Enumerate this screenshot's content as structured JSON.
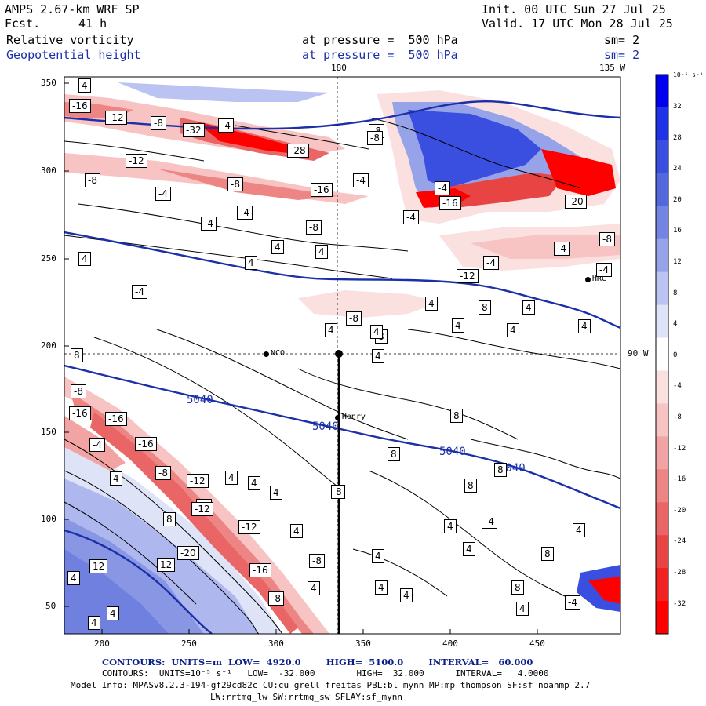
{
  "header": {
    "model": "AMPS 2.67-km WRF SP",
    "fcst_label": "Fcst.",
    "fcst_value": "41 h",
    "init": "Init. 00 UTC Sun 27 Jul 25",
    "valid": "Valid. 17 UTC Mon 28 Jul 25",
    "field1": "Relative vorticity",
    "field1_level": "at pressure =  500 hPa",
    "field1_sm": "sm= 2",
    "field2": "Geopotential height",
    "field2_level": "at pressure =  500 hPa",
    "field2_sm": "sm= 2"
  },
  "map": {
    "top_labels": {
      "lon180": "180",
      "lon135w": "135 W"
    },
    "side_label": "90 W",
    "y_ticks": [
      "350",
      "300",
      "250",
      "200",
      "150",
      "100",
      "50"
    ],
    "x_ticks": [
      "200",
      "250",
      "300",
      "350",
      "400",
      "450"
    ],
    "stations": [
      {
        "name": "NCO",
        "x": 291,
        "y": 195
      },
      {
        "name": "Henry",
        "x": 332,
        "y": 158
      },
      {
        "name": "HRC",
        "x": 476,
        "y": 238
      }
    ],
    "height_contour_labels": [
      "5040",
      "5040",
      "5040",
      "5040"
    ],
    "vorticity_labels": [
      "-16",
      "-12",
      "-8",
      "-4",
      "-12",
      "-8",
      "-4",
      "-4",
      "-8",
      "-4",
      "-8",
      "-16",
      "-8",
      "-4",
      "-28",
      "-32",
      "-8",
      "-4",
      "-16",
      "-4",
      "-20",
      "4",
      "4",
      "4",
      "4",
      "8",
      "4",
      "8",
      "-4",
      "-8",
      "-12",
      "-4",
      "-8",
      "4",
      "8",
      "4",
      "4",
      "4",
      "-4",
      "4",
      "4",
      "-4",
      "4",
      "8",
      "8",
      "8",
      "8",
      "4",
      "4",
      "4",
      "4",
      "-8",
      "-16",
      "-16",
      "-16",
      "-8",
      "-12",
      "-4",
      "-4",
      "-12",
      "-16",
      "-8",
      "-20",
      "-8",
      "-12",
      "4",
      "4",
      "8",
      "8",
      "12",
      "12",
      "4",
      "4",
      "4",
      "4",
      "4",
      "4",
      "4",
      "-4",
      "4",
      "4",
      "8",
      "8",
      "4",
      "4",
      "-4",
      "4"
    ]
  },
  "colorbar": {
    "unit": "10⁻⁵ s⁻¹",
    "labels": [
      "32",
      "28",
      "24",
      "20",
      "16",
      "12",
      "8",
      "4",
      "0",
      "-4",
      "-8",
      "-12",
      "-16",
      "-20",
      "-24",
      "-28",
      "-32"
    ],
    "colors": [
      "#0000ee",
      "#1e32e6",
      "#3a4fe0",
      "#5468dd",
      "#7484e2",
      "#97a3e9",
      "#bac3f1",
      "#dfe3f8",
      "#ffffff",
      "#fbe0e0",
      "#f7c3c3",
      "#f2a3a3",
      "#ee8585",
      "#ea6565",
      "#e94444",
      "#f02222",
      "#ff0000"
    ]
  },
  "footer": {
    "line1": "CONTOURS:  UNITS=m  LOW=  4920.0        HIGH=  5100.0        INTERVAL=   60.000",
    "line2": "CONTOURS:  UNITS=10⁻⁵ s⁻¹   LOW=  -32.000        HIGH=  32.000      INTERVAL=   4.0000",
    "line3": "Model Info: MPASv8.2.3-194-gf29cd82c CU:cu_grell_freitas PBL:bl_mynn MP:mp_thompson SF:sf_noahmp 2.7",
    "line4": "LW:rrtmg_lw SW:rrtmg_sw SFLAY:sf_mynn"
  }
}
